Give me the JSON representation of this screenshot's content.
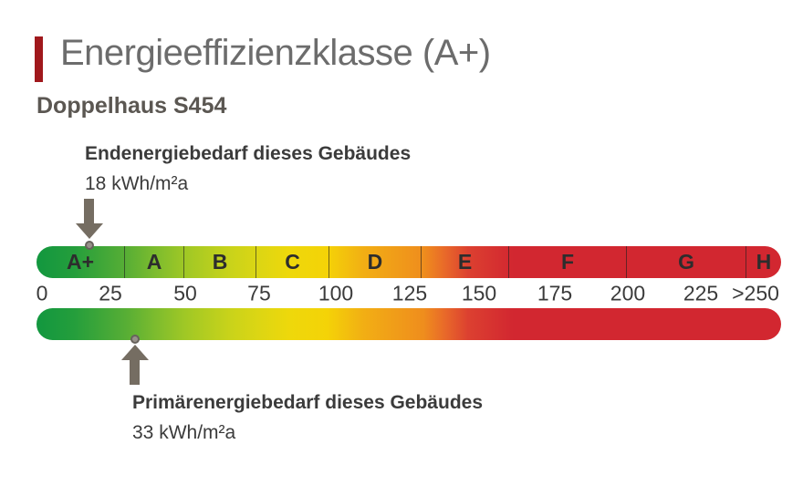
{
  "header": {
    "title": "Energieeffizienzklasse (A+)",
    "subtitle": "Doppelhaus S454"
  },
  "annotations": {
    "end_energy": {
      "label": "Endenergiebedarf dieses Gebäudes",
      "value": "18 kWh/m²a"
    },
    "primary_energy": {
      "label": "Primärenergiebedarf dieses Gebäudes",
      "value": "33 kWh/m²a"
    }
  },
  "chart_data": {
    "type": "bar",
    "variant": "energy-efficiency-scale",
    "title": "Energieeffizienzklasse (A+)",
    "subject": "Doppelhaus S454",
    "result_class": "A+",
    "unit": "kWh/m²a",
    "axis": {
      "min": 0,
      "max": 250,
      "tick_labels": [
        "0",
        "25",
        "50",
        "75",
        "100",
        "125",
        "150",
        "175",
        "200",
        "225",
        ">250"
      ]
    },
    "classes": [
      {
        "label": "A+",
        "range": "0–30"
      },
      {
        "label": "A",
        "range": "30–50"
      },
      {
        "label": "B",
        "range": "50–75"
      },
      {
        "label": "C",
        "range": "75–100"
      },
      {
        "label": "D",
        "range": "100–130"
      },
      {
        "label": "E",
        "range": "130–160"
      },
      {
        "label": "F",
        "range": "160–200"
      },
      {
        "label": "G",
        "range": "200–250"
      },
      {
        "label": "H",
        "range": ">250"
      }
    ],
    "markers": [
      {
        "name": "Endenergiebedarf dieses Gebäudes",
        "value": 18,
        "display": "18 kWh/m²a",
        "side": "top"
      },
      {
        "name": "Primärenergiebedarf dieses Gebäudes",
        "value": 33,
        "display": "33 kWh/m²a",
        "side": "bottom"
      }
    ],
    "layout": {
      "legend_position": "none",
      "grid": false,
      "segment_widths_pct": [
        11.89,
        7.97,
        9.68,
        9.8,
        12.38,
        11.77,
        15.81,
        16.05,
        4.65
      ],
      "tick_positions_pct": [
        0.74,
        9.93,
        19.98,
        29.9,
        40.2,
        50.12,
        59.44,
        69.61,
        79.41,
        89.22,
        96.57
      ],
      "marker_positions_pct": {
        "top": 7.1,
        "bottom": 13.2
      },
      "gradient_stops": [
        {
          "pct": 0,
          "color": "#12973f"
        },
        {
          "pct": 5,
          "color": "#249e3c"
        },
        {
          "pct": 12,
          "color": "#57ae35"
        },
        {
          "pct": 16,
          "color": "#7dbc2e"
        },
        {
          "pct": 20,
          "color": "#a0c825"
        },
        {
          "pct": 26,
          "color": "#c9d31a"
        },
        {
          "pct": 30,
          "color": "#ddd613"
        },
        {
          "pct": 34,
          "color": "#eed80b"
        },
        {
          "pct": 39,
          "color": "#f4d307"
        },
        {
          "pct": 44,
          "color": "#f2ae14"
        },
        {
          "pct": 52,
          "color": "#ef8d1d"
        },
        {
          "pct": 55,
          "color": "#e8672a"
        },
        {
          "pct": 58,
          "color": "#dc4030"
        },
        {
          "pct": 64,
          "color": "#d22730"
        },
        {
          "pct": 100,
          "color": "#d22730"
        }
      ]
    }
  },
  "colors": {
    "accent_red": "#a0181c",
    "title_text": "#6c6c6c",
    "subtitle_text": "#5b5752",
    "body_text": "#3b3b3b",
    "bar_letter": "#2d2d2d",
    "arrow": "#756d62",
    "dot_fill": "#97918a",
    "dot_ring": "#67625c",
    "divider_line": "rgba(30,30,30,0.6)"
  }
}
